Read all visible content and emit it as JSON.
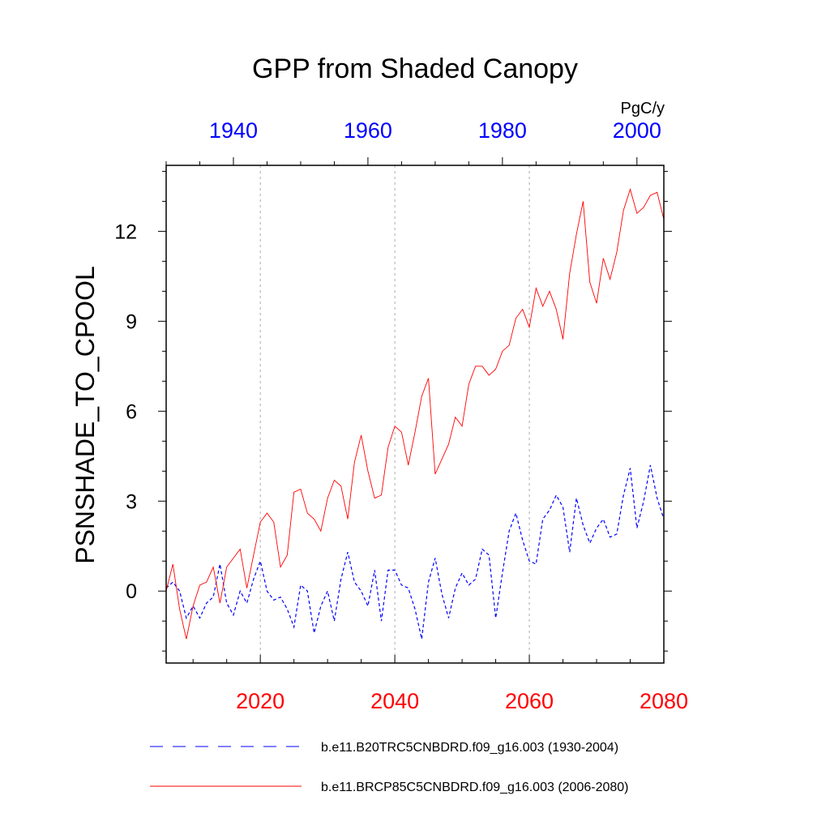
{
  "chart_data": {
    "type": "line",
    "title": "GPP from Shaded Canopy",
    "ylabel": "PSNSHADE_TO_CPOOL",
    "units": "PgC/y",
    "ylim": [
      -2.4,
      14.2
    ],
    "yticks": [
      0,
      3,
      6,
      9,
      12
    ],
    "bottom_axis": {
      "range": [
        2006,
        2080
      ],
      "ticks": [
        "2020",
        "2040",
        "2060",
        "2080"
      ],
      "color": "#ff0000"
    },
    "top_axis": {
      "range": [
        1930,
        2004
      ],
      "ticks": [
        "1940",
        "1960",
        "1980",
        "2000"
      ],
      "color": "#0000ff"
    },
    "grid": "vertical dotted at major ticks",
    "legend_position": "bottom",
    "series": [
      {
        "name": "b.e11.B20TRC5CNBDRD.f09_g16.003 (1930-2004)",
        "color": "#0000ff",
        "style": "dashed",
        "x_start": 1930,
        "values": [
          0.1,
          0.3,
          0.0,
          -0.9,
          -0.5,
          -0.9,
          -0.4,
          -0.2,
          0.9,
          -0.4,
          -0.8,
          0.0,
          -0.4,
          0.4,
          1.0,
          0.0,
          -0.3,
          -0.2,
          -0.6,
          -1.2,
          0.2,
          0.0,
          -1.4,
          -0.5,
          0.0,
          -1.0,
          0.4,
          1.3,
          0.3,
          0.0,
          -0.5,
          0.7,
          -1.0,
          0.7,
          0.7,
          0.2,
          0.1,
          -0.6,
          -1.6,
          0.3,
          1.1,
          -0.1,
          -0.9,
          0.1,
          0.6,
          0.2,
          0.4,
          1.4,
          1.2,
          -0.9,
          0.6,
          2.0,
          2.6,
          1.7,
          1.0,
          0.9,
          2.4,
          2.7,
          3.2,
          2.8,
          1.3,
          3.1,
          2.2,
          1.6,
          2.1,
          2.4,
          1.8,
          1.9,
          3.2,
          4.1,
          2.1,
          3.0,
          4.2,
          3.1,
          2.4
        ]
      },
      {
        "name": "b.e11.BRCP85C5CNBDRD.f09_g16.003 (2006-2080)",
        "color": "#ff0000",
        "style": "solid",
        "x_start": 2006,
        "values": [
          0.0,
          0.9,
          -0.6,
          -1.6,
          -0.5,
          0.2,
          0.3,
          0.8,
          -0.4,
          0.8,
          1.1,
          1.4,
          0.1,
          1.2,
          2.3,
          2.6,
          2.3,
          0.8,
          1.2,
          3.3,
          3.4,
          2.6,
          2.4,
          2.0,
          3.1,
          3.7,
          3.5,
          2.4,
          4.3,
          5.2,
          4.0,
          3.1,
          3.2,
          4.8,
          5.5,
          5.3,
          4.2,
          5.3,
          6.5,
          7.1,
          3.9,
          4.4,
          4.9,
          5.8,
          5.5,
          6.9,
          7.5,
          7.5,
          7.2,
          7.4,
          8.0,
          8.2,
          9.1,
          9.4,
          8.8,
          10.1,
          9.5,
          10.0,
          9.4,
          8.4,
          10.6,
          11.9,
          13.0,
          10.3,
          9.6,
          11.1,
          10.4,
          11.3,
          12.7,
          13.4,
          12.6,
          12.8,
          13.2,
          13.3,
          12.4
        ]
      }
    ]
  }
}
